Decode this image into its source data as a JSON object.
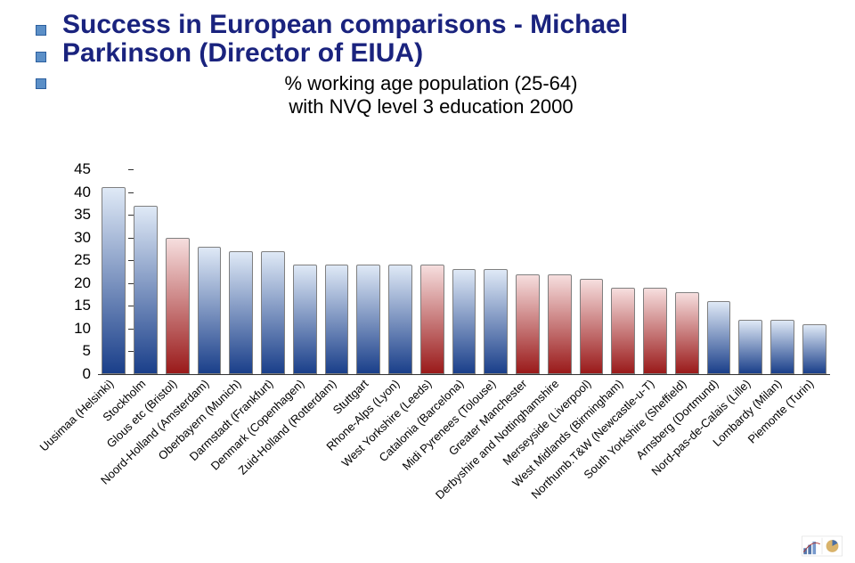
{
  "title": {
    "line1": "Success in European comparisons  - Michael",
    "line2": "Parkinson (Director of EIUA)",
    "color": "#1a237e",
    "fontsize": 30
  },
  "subtitle": {
    "line1": "% working age population (25-64)",
    "line2": "with NVQ level 3 education 2000",
    "color": "#000000",
    "fontsize": 22
  },
  "chart": {
    "type": "bar",
    "ylim": [
      0,
      45
    ],
    "ytick_step": 5,
    "ylabel_fontsize": 17,
    "xlabel_fontsize": 13,
    "xlabel_color": "#000000",
    "bar_width_ratio": 0.75,
    "bar_border_color": "#808080",
    "categories": [
      "Uusimaa (Helsinki)",
      "Stockholm",
      "Glous etc (Bristol)",
      "Noord-Holland (Amsterdam)",
      "Oberbayern (Munich)",
      "Darmstadt (Frankfurt)",
      "Denmark (Copenhagen)",
      "Zuid-Holland (Rotterdam)",
      "Stuttgart",
      "Rhone-Alps (Lyon)",
      "West Yorkshire (Leeds)",
      "Catalonia (Barcelona)",
      "Midi Pyrenees (Tolouse)",
      "Greater Manchester",
      "Derbyshire and Nottinghamshire",
      "Merseyside (Liverpool)",
      "West Midlands (Birmingham)",
      "Northumb.T&W (Newcastle-u-T)",
      "South Yorkshire (Sheffield)",
      "Arnsberg (Dortmund)",
      "Nord-pas-de-Calais (Lille)",
      "Lombardy (Milan)",
      "Piemonte (Turin)"
    ],
    "values": [
      41,
      37,
      30,
      28,
      27,
      27,
      24,
      24,
      24,
      24,
      24,
      23,
      23,
      22,
      22,
      21,
      19,
      19,
      18,
      16,
      12,
      12,
      11
    ],
    "color_scheme": [
      "blue",
      "blue",
      "red",
      "blue",
      "blue",
      "blue",
      "blue",
      "blue",
      "blue",
      "blue",
      "red",
      "blue",
      "blue",
      "red",
      "red",
      "red",
      "red",
      "red",
      "red",
      "blue",
      "blue",
      "blue",
      "blue"
    ],
    "palette": {
      "blue_top": "#dfe9f6",
      "blue_bot": "#1a3f8a",
      "red_top": "#f6dede",
      "red_bot": "#9a1a1a"
    }
  }
}
